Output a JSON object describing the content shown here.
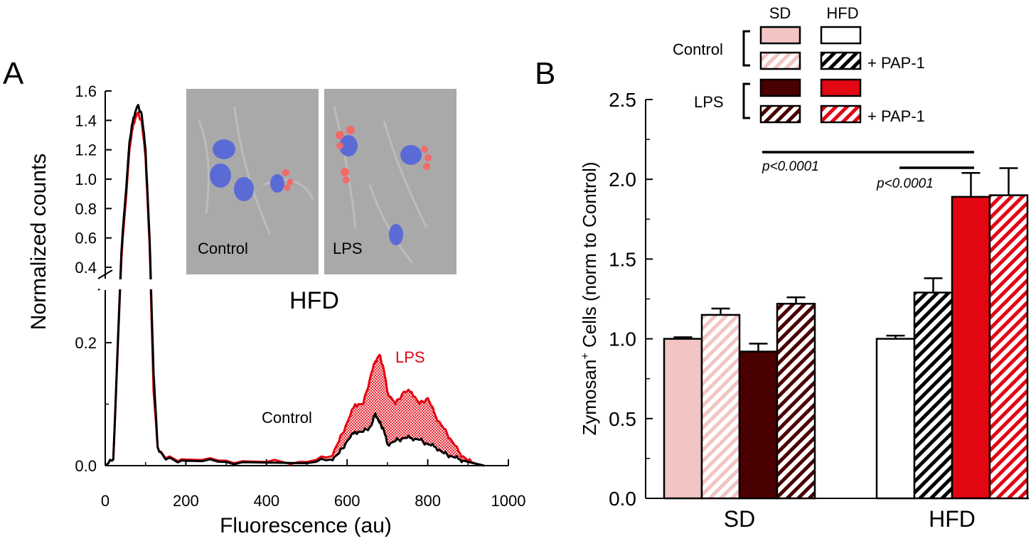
{
  "colors": {
    "sd_control": "#f2c4c4",
    "sd_lps": "#4a0000",
    "hfd_control": "#ffffff",
    "hfd_lps": "#e30613",
    "control_trace": "#000000",
    "lps_trace": "#e30613",
    "micrograph_bg": "#a9a9a9",
    "nucleus": "#5a6bd6",
    "zymosan": "#f26a6a"
  },
  "panel_a": {
    "letter": "A",
    "ylabel": "Normalized counts",
    "xlabel": "Fluorescence (au)",
    "group_label": "HFD",
    "curve_labels": {
      "lps": "LPS",
      "control": "Control"
    },
    "inset_labels": [
      "Control",
      "LPS"
    ]
  },
  "panel_b": {
    "letter": "B",
    "ylabel_prefix": "Zymosan",
    "ylabel_sup": "+",
    "ylabel_suffix": " Cells (norm to Control)",
    "legend": {
      "col_headers": [
        "SD",
        "HFD"
      ],
      "group_labels": [
        "Control",
        "LPS"
      ],
      "pap_label": "+ PAP-1"
    },
    "sig_labels": [
      "p<0.0001",
      "p<0.0001"
    ]
  },
  "chart_data": [
    {
      "type": "line",
      "title": "",
      "xlabel": "Fluorescence (au)",
      "ylabel": "Normalized counts",
      "xlim": [
        0,
        1000
      ],
      "y_axis_broken": true,
      "ylim_lower": [
        0.0,
        0.3
      ],
      "ylim_upper": [
        0.4,
        1.6
      ],
      "x_ticks": [
        "0",
        "200",
        "400",
        "600",
        "800",
        "1000"
      ],
      "y_ticks_lower": [
        "0.0",
        "0.2"
      ],
      "y_ticks_upper": [
        "0.4",
        "0.6",
        "0.8",
        "1.0",
        "1.2",
        "1.4",
        "1.6"
      ],
      "series": [
        {
          "name": "Control",
          "x": [
            0,
            20,
            40,
            60,
            70,
            80,
            90,
            100,
            110,
            120,
            130,
            150,
            200,
            300,
            400,
            500,
            560,
            580,
            600,
            620,
            640,
            660,
            670,
            680,
            690,
            700,
            720,
            740,
            760,
            780,
            800,
            820,
            840,
            860,
            880,
            900,
            920,
            940
          ],
          "y": [
            0,
            0.01,
            0.5,
            1.25,
            1.42,
            1.5,
            1.45,
            1.2,
            0.6,
            0.15,
            0.03,
            0.01,
            0.008,
            0.006,
            0.005,
            0.004,
            0.01,
            0.02,
            0.04,
            0.055,
            0.055,
            0.065,
            0.085,
            0.07,
            0.06,
            0.035,
            0.04,
            0.045,
            0.045,
            0.042,
            0.035,
            0.03,
            0.02,
            0.015,
            0.01,
            0.006,
            0.003,
            0
          ]
        },
        {
          "name": "LPS",
          "x": [
            0,
            20,
            40,
            60,
            70,
            80,
            90,
            100,
            110,
            120,
            130,
            150,
            200,
            300,
            400,
            500,
            560,
            580,
            600,
            620,
            640,
            660,
            670,
            680,
            690,
            700,
            720,
            740,
            760,
            780,
            800,
            820,
            840,
            860,
            880,
            900,
            920,
            940
          ],
          "y": [
            0,
            0.01,
            0.45,
            1.2,
            1.38,
            1.45,
            1.4,
            1.15,
            0.55,
            0.12,
            0.03,
            0.012,
            0.01,
            0.008,
            0.006,
            0.006,
            0.015,
            0.04,
            0.07,
            0.1,
            0.1,
            0.15,
            0.17,
            0.18,
            0.16,
            0.12,
            0.1,
            0.12,
            0.12,
            0.1,
            0.11,
            0.08,
            0.06,
            0.04,
            0.02,
            0.008,
            0.003,
            0
          ]
        }
      ]
    },
    {
      "type": "bar",
      "title": "",
      "xlabel": "",
      "ylabel": "Zymosan+ Cells (norm to Control)",
      "ylim": [
        0.0,
        2.5
      ],
      "y_ticks": [
        "0.0",
        "0.5",
        "1.0",
        "1.5",
        "2.0",
        "2.5"
      ],
      "categories": [
        "SD",
        "HFD"
      ],
      "series": [
        {
          "name": "Control",
          "values": [
            1.0,
            1.0
          ],
          "errors": [
            0.01,
            0.02
          ]
        },
        {
          "name": "Control + PAP-1",
          "values": [
            1.15,
            1.29
          ],
          "errors": [
            0.04,
            0.09
          ]
        },
        {
          "name": "LPS",
          "values": [
            0.92,
            1.89
          ],
          "errors": [
            0.05,
            0.15
          ]
        },
        {
          "name": "LPS + PAP-1",
          "values": [
            1.22,
            1.9
          ],
          "errors": [
            0.04,
            0.17
          ]
        }
      ],
      "significance": [
        {
          "from": "SD LPS",
          "to": "HFD LPS",
          "label": "p<0.0001"
        },
        {
          "from": "HFD Control",
          "to": "HFD LPS",
          "label": "p<0.0001"
        }
      ]
    }
  ]
}
